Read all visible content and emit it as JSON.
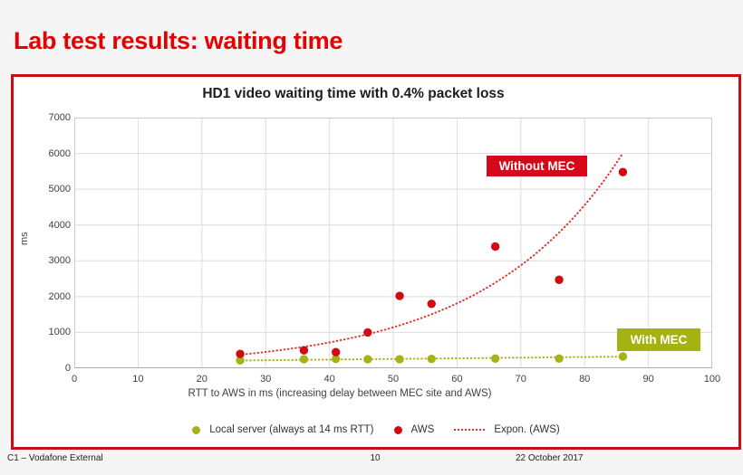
{
  "slide": {
    "title": "Lab test results: waiting time",
    "footer": {
      "classification": "C1 – Vodafone External",
      "page_number": "10",
      "date": "22 October 2017"
    }
  },
  "chart_data": {
    "type": "scatter",
    "title": "HD1 video waiting time with 0.4% packet loss",
    "xlabel": "RTT to AWS in ms (increasing delay between MEC site and AWS)",
    "ylabel": "ms",
    "xlim": [
      0,
      100
    ],
    "ylim": [
      0,
      7000
    ],
    "x_ticks": [
      0,
      10,
      20,
      30,
      40,
      50,
      60,
      70,
      80,
      90,
      100
    ],
    "y_ticks": [
      0,
      1000,
      2000,
      3000,
      4000,
      5000,
      6000,
      7000
    ],
    "grid": true,
    "legend_position": "bottom",
    "x": [
      26,
      36,
      41,
      46,
      51,
      56,
      66,
      76,
      86
    ],
    "series": [
      {
        "name": "Local server (always at 14 ms RTT)",
        "color": "#a3b414",
        "values": [
          220,
          250,
          260,
          250,
          250,
          260,
          270,
          270,
          330
        ]
      },
      {
        "name": "AWS",
        "color": "#d00c12",
        "values": [
          400,
          500,
          450,
          1000,
          2020,
          1800,
          3400,
          2470,
          5480
        ]
      }
    ],
    "trendlines": [
      {
        "name": "Expon. (AWS)",
        "color": "#dd352c",
        "style": "dotted",
        "formula": "a*exp(b*x)",
        "a": 114,
        "b": 0.0461,
        "x_range": [
          25.8,
          86
        ]
      },
      {
        "name": "Local server trend",
        "color": "#a3b414",
        "style": "dotted",
        "y_range": [
          215,
          325
        ],
        "x_range": [
          25.8,
          86
        ]
      }
    ],
    "annotations": [
      {
        "text": "Without MEC",
        "color": "#ffffff",
        "bg": "#d6091b"
      },
      {
        "text": "With MEC",
        "color": "#ffffff",
        "bg": "#a6b211"
      }
    ]
  },
  "legend": {
    "items": [
      {
        "label": "Local server (always at 14 ms RTT)",
        "marker": "dot",
        "color": "#a3b414"
      },
      {
        "label": "AWS",
        "marker": "dot",
        "color": "#d00c12"
      },
      {
        "label": "Expon. (AWS)",
        "marker": "dotted-line",
        "color": "#dd352c"
      }
    ]
  },
  "colors": {
    "slide_title": "#e60000",
    "panel_border": "#c90d17",
    "gridline": "#dcdcdc",
    "plot_border": "#c9c9c9",
    "axis_text": "#3f3f3f"
  }
}
